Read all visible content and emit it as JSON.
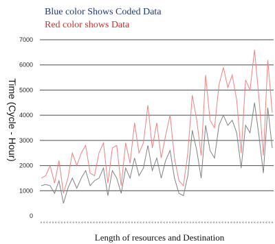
{
  "chart_data": {
    "type": "line",
    "legend": {
      "blue_text": "Blue color Shows Coded Data",
      "red_text": "Red color shows Data"
    },
    "ylabel": "Time (Cycle - Hour)",
    "xlabel": "Length of resources and Destination",
    "ylim": [
      0,
      7000
    ],
    "yticks": [
      "0",
      "1000",
      "2000",
      "3000",
      "4000",
      "5000",
      "6000",
      "7000"
    ],
    "xtick_labels": [
      "«",
      "«",
      "«",
      "«",
      "«",
      "«",
      "«",
      "«",
      "«",
      "«",
      "«",
      "«",
      "«",
      "«",
      "«",
      "«",
      "«",
      "«",
      "«",
      "«",
      "«",
      "«",
      "«",
      "«",
      "«",
      "«",
      "«",
      "«",
      "«",
      "«",
      "«",
      "«",
      "«",
      "«",
      "«",
      "«",
      "«",
      "«",
      "«",
      "«",
      "«",
      "«",
      "«",
      "«",
      "«",
      "«",
      "«",
      "«",
      "«",
      "«",
      "«",
      "«",
      "«",
      "«",
      "«",
      "«",
      "«",
      "«",
      "«",
      "«",
      "«",
      "«",
      "«",
      "«",
      "«",
      "«",
      "«",
      "«",
      "«",
      "«",
      "«",
      "«",
      "«",
      "«",
      "«",
      "«",
      "«",
      "«",
      "«",
      "«"
    ],
    "grid": true,
    "series": [
      {
        "color": "#f08080",
        "values": [
          1500,
          1600,
          2000,
          1300,
          2200,
          900,
          1500,
          2500,
          2000,
          2500,
          2800,
          1700,
          1600,
          2500,
          2900,
          1300,
          2700,
          2800,
          1200,
          2900,
          2100,
          3700,
          2500,
          2900,
          4400,
          2700,
          3700,
          2300,
          3200,
          4000,
          2300,
          1400,
          1200,
          2500,
          4800,
          3800,
          2400,
          5600,
          3800,
          3500,
          5200,
          5900,
          5100,
          5600,
          4600,
          2500,
          5400,
          5000,
          6600,
          4700,
          2400,
          6200,
          4100
        ]
      },
      {
        "color": "#808080",
        "values": [
          1200,
          1250,
          1200,
          900,
          1400,
          500,
          1100,
          1500,
          1100,
          1500,
          1800,
          1200,
          1400,
          1500,
          1900,
          800,
          1800,
          1500,
          900,
          1900,
          1500,
          2300,
          1600,
          1900,
          2800,
          1800,
          2300,
          1500,
          2200,
          2600,
          1500,
          900,
          800,
          1600,
          3400,
          2600,
          1500,
          3600,
          2600,
          2300,
          3600,
          4000,
          3600,
          3800,
          3300,
          1900,
          3600,
          3300,
          4500,
          3200,
          1700,
          4300,
          2700
        ]
      }
    ]
  }
}
